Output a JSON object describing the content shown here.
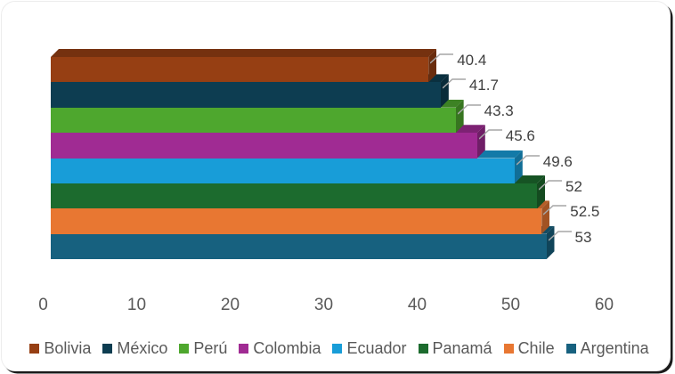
{
  "chart_data": {
    "type": "bar",
    "orientation": "horizontal",
    "effect": "3d",
    "title": "",
    "xlabel": "",
    "ylabel": "",
    "xlim": [
      0,
      60
    ],
    "xticks": [
      0,
      10,
      20,
      30,
      40,
      50,
      60
    ],
    "grid": false,
    "legend_position": "bottom",
    "series": [
      {
        "name": "Bolivia",
        "value": 40.4,
        "label": "40.4",
        "color": "#963F13"
      },
      {
        "name": "México",
        "value": 41.7,
        "label": "41.7",
        "color": "#0D3D51"
      },
      {
        "name": "Perú",
        "value": 43.3,
        "label": "43.3",
        "color": "#4EA72E"
      },
      {
        "name": "Colombia",
        "value": 45.6,
        "label": "45.6",
        "color": "#A02B93"
      },
      {
        "name": "Ecuador",
        "value": 49.6,
        "label": "49.6",
        "color": "#189DD8"
      },
      {
        "name": "Panamá",
        "value": 52,
        "label": "52",
        "color": "#1C6B2E"
      },
      {
        "name": "Chile",
        "value": 52.5,
        "label": "52.5",
        "color": "#E87732"
      },
      {
        "name": "Argentina",
        "value": 53,
        "label": "53",
        "color": "#17617F"
      }
    ]
  },
  "styles": {
    "axis_text_color": "#595959",
    "value_label_color": "#3F3F3F",
    "leader_line_color": "#A6A6A6",
    "frame_border_color": "#1A1A1A",
    "background_color": "#FFFFFF"
  }
}
